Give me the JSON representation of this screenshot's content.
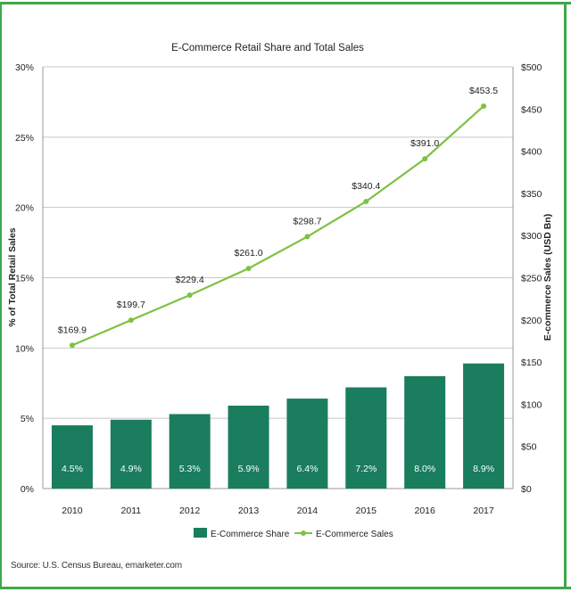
{
  "colors": {
    "accent": "#3da84a",
    "bar": "#1a7d5e",
    "line": "#7dc243",
    "grid": "#c8c8c8",
    "text": "#222222"
  },
  "source": "Source: U.S. Census Bureau, emarketer.com",
  "chart_data": {
    "type": "bar",
    "title": "E-Commerce Retail Share and Total Sales",
    "ylabel": "% of Total  Retail Sales",
    "y2label": "E-commerce Sales (USD Bn)",
    "categories": [
      "2010",
      "2011",
      "2012",
      "2013",
      "2014",
      "2015",
      "2016",
      "2017"
    ],
    "ylim": [
      0,
      30
    ],
    "y2lim": [
      0,
      500
    ],
    "yticks": [
      "0%",
      "5%",
      "10%",
      "15%",
      "20%",
      "25%",
      "30%"
    ],
    "y2ticks": [
      "$0",
      "$50",
      "$100",
      "$150",
      "$200",
      "$250",
      "$300",
      "$350",
      "$400",
      "$450",
      "$500"
    ],
    "grid": true,
    "legend_position": "bottom",
    "series": [
      {
        "name": "E-Commerce Share",
        "kind": "bar",
        "axis": "left",
        "values": [
          4.5,
          4.9,
          5.3,
          5.9,
          6.4,
          7.2,
          8.0,
          8.9
        ],
        "labels": [
          "4.5%",
          "4.9%",
          "5.3%",
          "5.9%",
          "6.4%",
          "7.2%",
          "8.0%",
          "8.9%"
        ]
      },
      {
        "name": "E-Commerce Sales",
        "kind": "line",
        "axis": "right",
        "values": [
          169.9,
          199.7,
          229.4,
          261.0,
          298.7,
          340.4,
          391.0,
          453.5
        ],
        "labels": [
          "$169.9",
          "$199.7",
          "$229.4",
          "$261.0",
          "$298.7",
          "$340.4",
          "$391.0",
          "$453.5"
        ]
      }
    ]
  }
}
